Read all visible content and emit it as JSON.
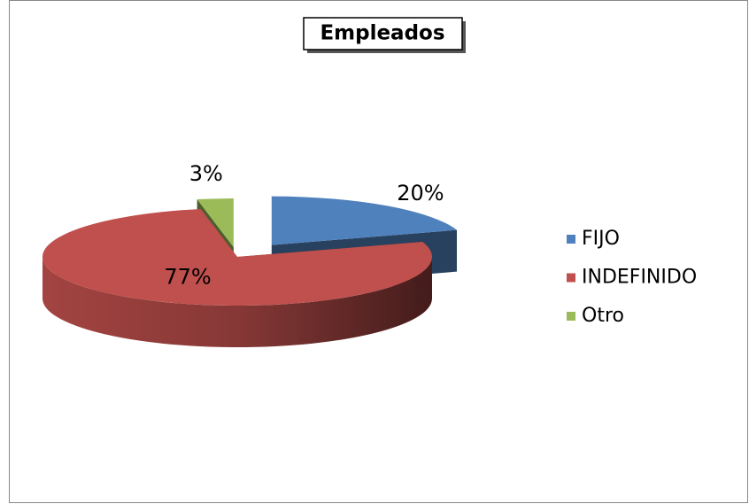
{
  "chart_data": {
    "type": "pie3d",
    "title": "Empleados",
    "categories": [
      "FIJO",
      "INDEFINIDO",
      "Otro"
    ],
    "values": [
      20,
      77,
      3
    ],
    "value_labels": [
      "20%",
      "77%",
      "3%"
    ],
    "colors": [
      "#4f81bd",
      "#c0504d",
      "#9bbb59"
    ],
    "legend": "right"
  }
}
